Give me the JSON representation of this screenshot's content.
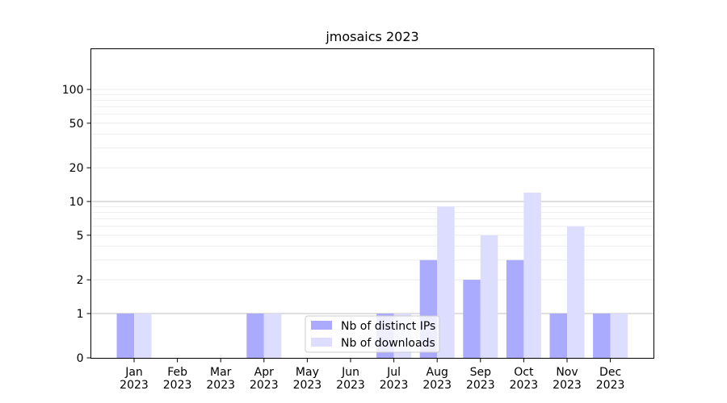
{
  "chart_data": {
    "type": "bar",
    "title": "jmosaics 2023",
    "xlabel": "",
    "ylabel": "",
    "yscale": "symlog",
    "ylim": [
      0,
      120
    ],
    "yticks": [
      0,
      1,
      2,
      5,
      10,
      20,
      50,
      100
    ],
    "ytick_labels": [
      "0",
      "1",
      "2",
      "5",
      "10",
      "20",
      "50",
      "100"
    ],
    "categories": [
      "Jan\n2023",
      "Feb\n2023",
      "Mar\n2023",
      "Apr\n2023",
      "May\n2023",
      "Jun\n2023",
      "Jul\n2023",
      "Aug\n2023",
      "Sep\n2023",
      "Oct\n2023",
      "Nov\n2023",
      "Dec\n2023"
    ],
    "series": [
      {
        "name": "Nb of distinct IPs",
        "color": "#aaaaff",
        "values": [
          1,
          0,
          0,
          1,
          0,
          0,
          1,
          3,
          2,
          3,
          1,
          1
        ]
      },
      {
        "name": "Nb of downloads",
        "color": "#ddddff",
        "values": [
          1,
          0,
          0,
          1,
          0,
          0,
          1,
          9,
          5,
          12,
          6,
          1
        ]
      }
    ],
    "legend": "lower-center",
    "grid": true
  }
}
